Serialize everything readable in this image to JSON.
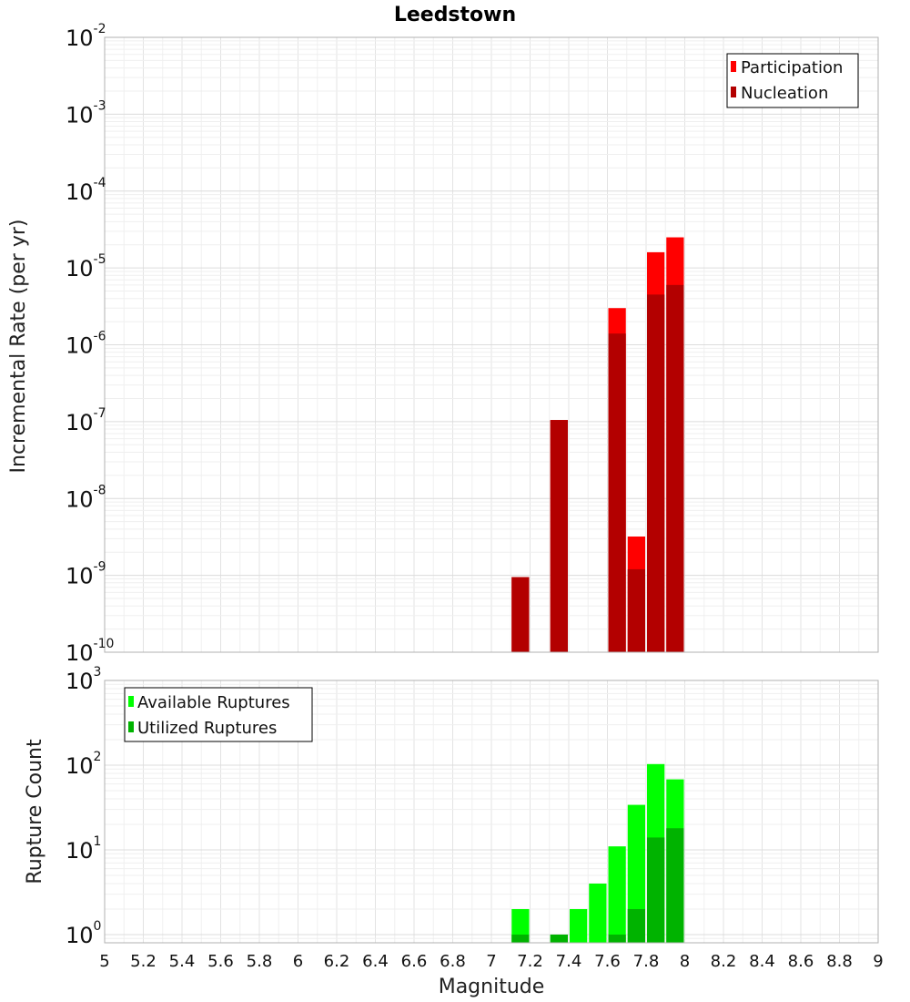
{
  "chart_data": [
    {
      "type": "bar",
      "title": "Leedstown",
      "xlabel": "",
      "ylabel": "Incremental Rate (per yr)",
      "yscale": "log",
      "xlim": [
        5,
        9
      ],
      "ylim": [
        1e-10,
        0.01
      ],
      "ytick_exponents": [
        -10,
        -9,
        -8,
        -7,
        -6,
        -5,
        -4,
        -3,
        -2
      ],
      "bar_width": 0.1,
      "grid": true,
      "legend_placement": "top-right",
      "series": [
        {
          "name": "Participation",
          "color": "#ff0000",
          "x": [
            7.15,
            7.35,
            7.65,
            7.75,
            7.85,
            7.95
          ],
          "values": [
            9.5e-10,
            1.05e-07,
            3e-06,
            3.2e-09,
            1.6e-05,
            2.5e-05
          ]
        },
        {
          "name": "Nucleation",
          "color": "#b30000",
          "x": [
            7.15,
            7.35,
            7.65,
            7.75,
            7.85,
            7.95
          ],
          "values": [
            9.5e-10,
            1.05e-07,
            1.4e-06,
            1.2e-09,
            4.5e-06,
            6e-06
          ]
        }
      ]
    },
    {
      "type": "bar",
      "title": "",
      "xlabel": "Magnitude",
      "ylabel": "Rupture Count",
      "yscale": "log",
      "xlim": [
        5,
        9
      ],
      "ylim": [
        0.8,
        1000
      ],
      "ytick_exponents": [
        0,
        1,
        2,
        3
      ],
      "x_ticks": [
        "5",
        "5.2",
        "5.4",
        "5.6",
        "5.8",
        "6",
        "6.2",
        "6.4",
        "6.6",
        "6.8",
        "7",
        "7.2",
        "7.4",
        "7.6",
        "7.8",
        "8",
        "8.2",
        "8.4",
        "8.6",
        "8.8",
        "9"
      ],
      "bar_width": 0.1,
      "grid": true,
      "legend_placement": "top-left",
      "series": [
        {
          "name": "Available Ruptures",
          "color": "#00ff00",
          "x": [
            7.15,
            7.35,
            7.45,
            7.55,
            7.65,
            7.75,
            7.85,
            7.95
          ],
          "values": [
            2,
            1,
            2,
            4,
            11,
            34,
            103,
            68
          ]
        },
        {
          "name": "Utilized Ruptures",
          "color": "#00b300",
          "x": [
            7.15,
            7.35,
            7.45,
            7.55,
            7.65,
            7.75,
            7.85,
            7.95
          ],
          "values": [
            1,
            1,
            0,
            0,
            1,
            2,
            14,
            18
          ]
        }
      ]
    }
  ]
}
